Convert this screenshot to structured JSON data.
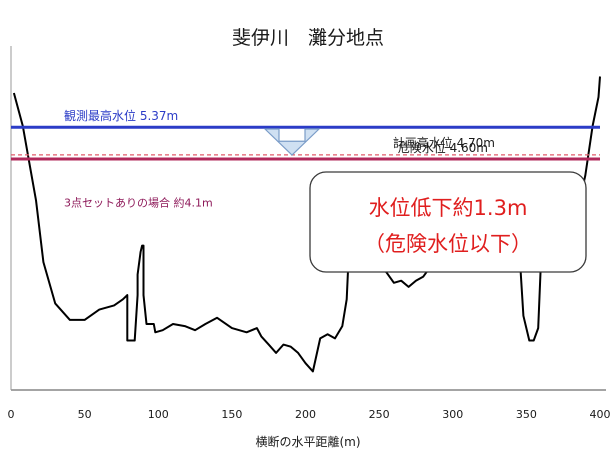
{
  "chart_data": {
    "type": "area",
    "title": "斐伊川　灘分地点",
    "xlabel": "横断の水平距離(m)",
    "ylabel": "",
    "xlim": [
      0,
      400
    ],
    "ylim": [
      -1.0,
      7.0
    ],
    "x_ticks": [
      "0",
      "50",
      "100",
      "150",
      "200",
      "250",
      "300",
      "350",
      "400"
    ],
    "grid": false,
    "series": [
      {
        "name": "",
        "x": [
          2,
          8,
          13,
          17,
          22,
          30,
          40,
          50,
          60,
          70,
          76,
          79,
          79,
          82,
          84,
          86,
          86,
          88,
          89,
          90,
          90,
          92,
          95,
          97,
          98,
          103,
          110,
          118,
          125,
          132,
          140,
          150,
          160,
          167,
          170,
          175,
          180,
          185,
          190,
          195,
          200,
          205,
          210,
          215,
          220,
          225,
          228,
          230,
          232,
          236,
          240,
          245,
          250,
          255,
          260,
          265,
          270,
          275,
          280,
          285,
          290,
          295,
          300,
          305,
          310,
          315,
          320,
          325,
          330,
          335,
          340,
          344,
          348,
          352,
          355,
          358,
          360,
          362,
          365,
          370,
          375,
          380,
          385,
          390,
          395,
          399,
          400
        ],
        "values": [
          6.2,
          5.4,
          4.4,
          3.6,
          2.1,
          1.1,
          0.7,
          0.7,
          0.95,
          1.05,
          1.2,
          1.3,
          0.2,
          0.2,
          0.2,
          1.3,
          1.8,
          2.35,
          2.5,
          2.5,
          1.3,
          0.6,
          0.6,
          0.6,
          0.4,
          0.45,
          0.6,
          0.55,
          0.45,
          0.6,
          0.75,
          0.5,
          0.4,
          0.5,
          0.3,
          0.1,
          -0.1,
          0.1,
          0.05,
          -0.1,
          -0.35,
          -0.55,
          0.25,
          0.35,
          0.25,
          0.55,
          1.2,
          2.8,
          3.1,
          2.9,
          2.4,
          2.2,
          2.05,
          1.85,
          1.6,
          1.65,
          1.5,
          1.65,
          1.75,
          2.0,
          2.05,
          2.1,
          2.2,
          2.0,
          2.1,
          1.95,
          2.1,
          2.15,
          2.05,
          2.4,
          2.85,
          3.1,
          0.8,
          0.2,
          0.2,
          0.5,
          2.2,
          3.0,
          3.0,
          3.0,
          3.5,
          3.35,
          3.4,
          4.2,
          5.4,
          6.1,
          6.6
        ],
        "color": "#000000"
      }
    ],
    "reference_lines": [
      {
        "label": "観測最高水位 5.37m",
        "value": 5.37,
        "color": "#2b3cc7"
      },
      {
        "label": "計画高水位 4.70m",
        "value": 4.7,
        "color": "#e05a6a",
        "style": "dashed"
      },
      {
        "label": "危険水位 4.60m",
        "value": 4.6,
        "color": "#b0285a"
      },
      {
        "label": "3点セットありの場合 約4.1m",
        "value": 4.1,
        "color": "#8e1a5a",
        "line": false
      }
    ],
    "annotation": {
      "line1": "水位低下約1.3m",
      "line2": "（危険水位以下）",
      "color": "#e01e1e"
    },
    "arrow": {
      "direction": "down",
      "fill": "#cfe0f2",
      "stroke": "#7a9cc8"
    }
  }
}
